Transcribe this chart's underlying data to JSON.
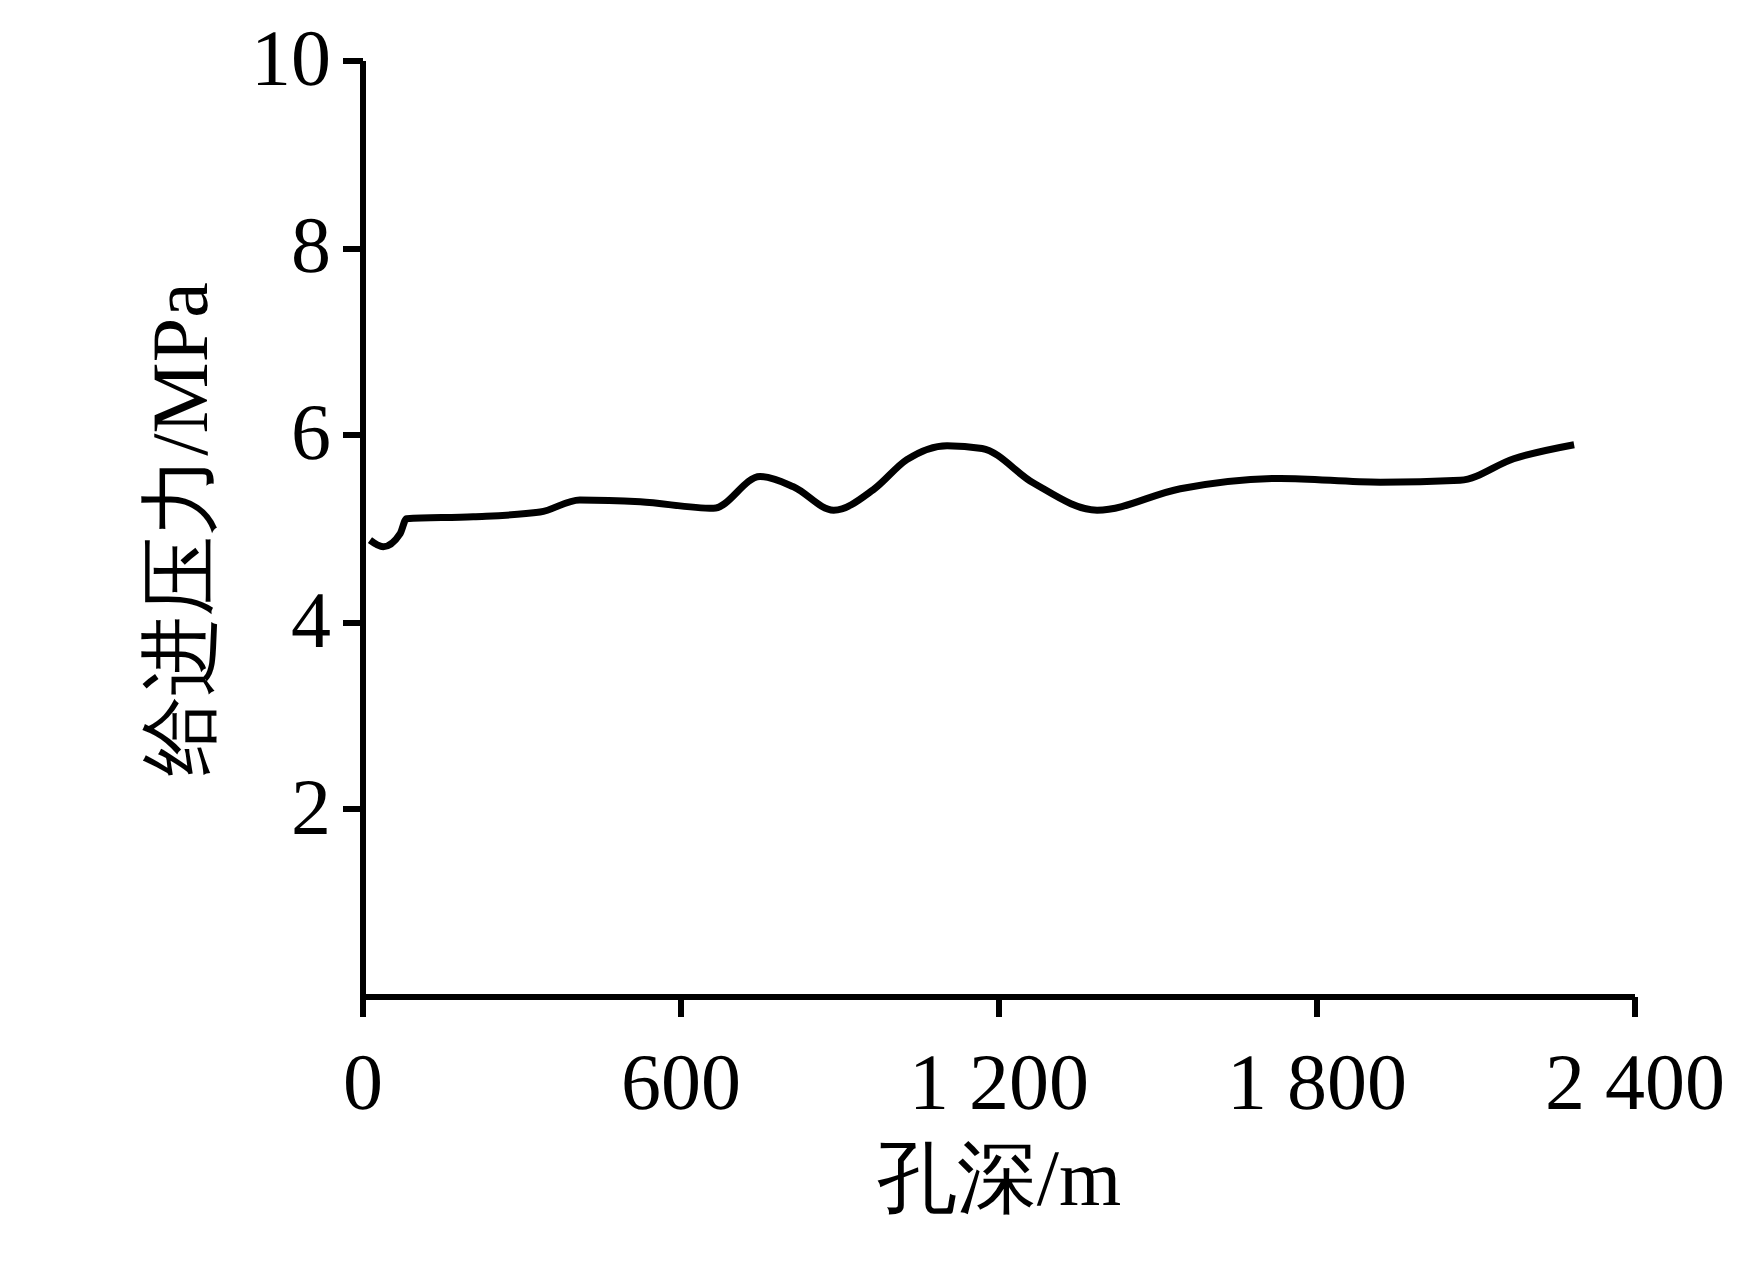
{
  "chart_data": {
    "type": "line",
    "xlabel": "孔深/m",
    "ylabel": "给进压力/MPa",
    "x": [
      15,
      40,
      72,
      84,
      210,
      336,
      411,
      525,
      663,
      751,
      814,
      890,
      965,
      1028,
      1104,
      1170,
      1267,
      1387,
      1544,
      1733,
      1921,
      2072,
      2173,
      2287
    ],
    "series": [
      {
        "color": "#000000",
        "values": [
          4.87,
          4.8,
          4.94,
          5.1,
          5.12,
          5.17,
          5.3,
          5.28,
          5.21,
          5.55,
          5.44,
          5.19,
          5.41,
          5.73,
          5.88,
          5.85,
          5.48,
          5.19,
          5.42,
          5.53,
          5.49,
          5.51,
          5.74,
          5.89
        ]
      }
    ],
    "xlim": [
      0,
      2400
    ],
    "xticks": [
      0,
      600,
      {
        "value": 1200,
        "label": "1 200"
      },
      {
        "value": 1800,
        "label": "1 800"
      },
      {
        "value": 2400,
        "label": "2 400"
      }
    ],
    "ylim": [
      0,
      10
    ],
    "yticks": [
      2,
      4,
      6,
      8,
      10
    ],
    "grid": false,
    "marker": "none",
    "line_style": "solid"
  }
}
